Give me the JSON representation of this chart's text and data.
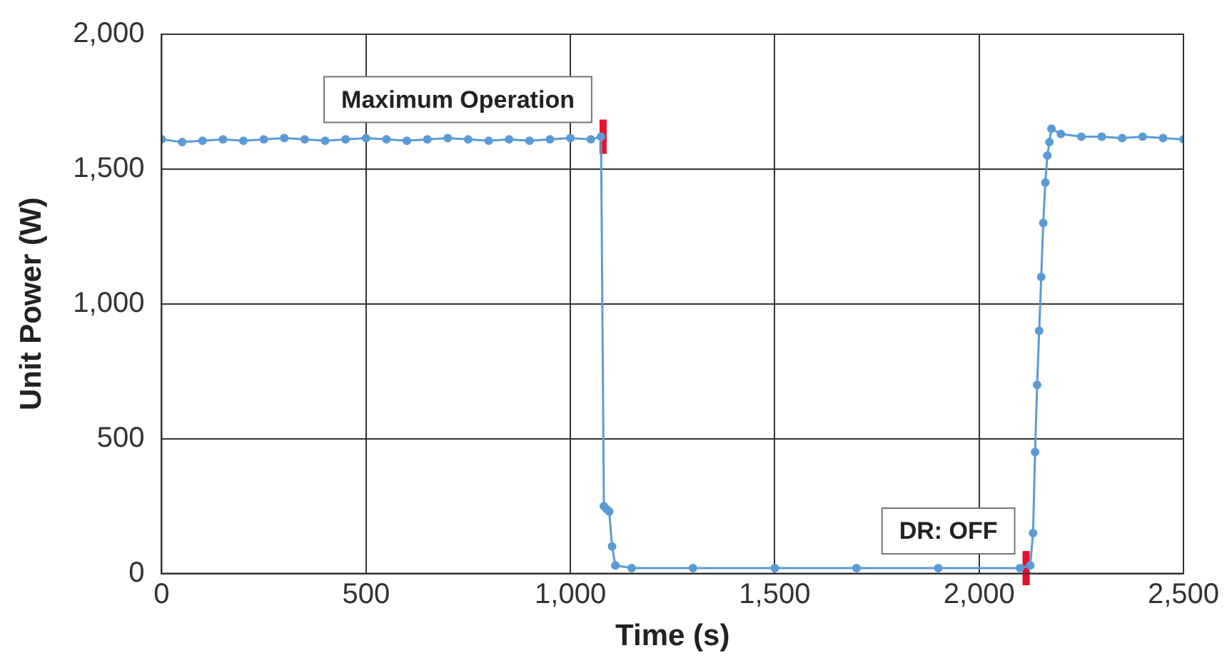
{
  "chart_data": {
    "type": "line",
    "xlabel": "Time (s)",
    "ylabel": "Unit Power (W)",
    "xlim": [
      0,
      2500
    ],
    "xticks": [
      0,
      {
        "value": 500,
        "label": "500"
      },
      {
        "value": 1000,
        "label": "1,000"
      },
      {
        "value": 1500,
        "label": "1,500"
      },
      {
        "value": 2000,
        "label": "2,000"
      },
      {
        "value": 2500,
        "label": "2,500"
      }
    ],
    "ylim": [
      0,
      2000
    ],
    "yticks": [
      0,
      500,
      {
        "value": 1000,
        "label": "1,000"
      },
      {
        "value": 1500,
        "label": "1,500"
      },
      {
        "value": 2000,
        "label": "2,000"
      }
    ],
    "grid": true,
    "legend": false,
    "marker": "circle",
    "line_style": "solid",
    "series": [
      {
        "color": "#5b9bd5",
        "x": [
          0,
          50,
          100,
          150,
          200,
          250,
          300,
          350,
          400,
          450,
          500,
          550,
          600,
          650,
          700,
          750,
          800,
          850,
          900,
          950,
          1000,
          1050,
          1075,
          1082,
          1088,
          1095,
          1102,
          1110,
          1150,
          1300,
          1500,
          1700,
          1900,
          2100,
          2125,
          2132,
          2137,
          2142,
          2147,
          2152,
          2157,
          2162,
          2167,
          2172,
          2177,
          2200,
          2250,
          2300,
          2350,
          2400,
          2450,
          2500
        ],
        "values": [
          1610,
          1600,
          1605,
          1610,
          1605,
          1610,
          1615,
          1610,
          1605,
          1610,
          1615,
          1610,
          1605,
          1610,
          1615,
          1610,
          1605,
          1610,
          1605,
          1610,
          1615,
          1610,
          1620,
          250,
          240,
          230,
          100,
          30,
          20,
          20,
          20,
          20,
          20,
          20,
          30,
          150,
          450,
          700,
          900,
          1100,
          1300,
          1450,
          1550,
          1600,
          1650,
          1630,
          1620,
          1620,
          1615,
          1620,
          1615,
          1610
        ]
      }
    ],
    "annotations": [
      {
        "text": "Maximum Operation",
        "x": 1080,
        "y": 1620
      },
      {
        "text": "DR: OFF",
        "x": 2115,
        "y": 20
      }
    ]
  }
}
